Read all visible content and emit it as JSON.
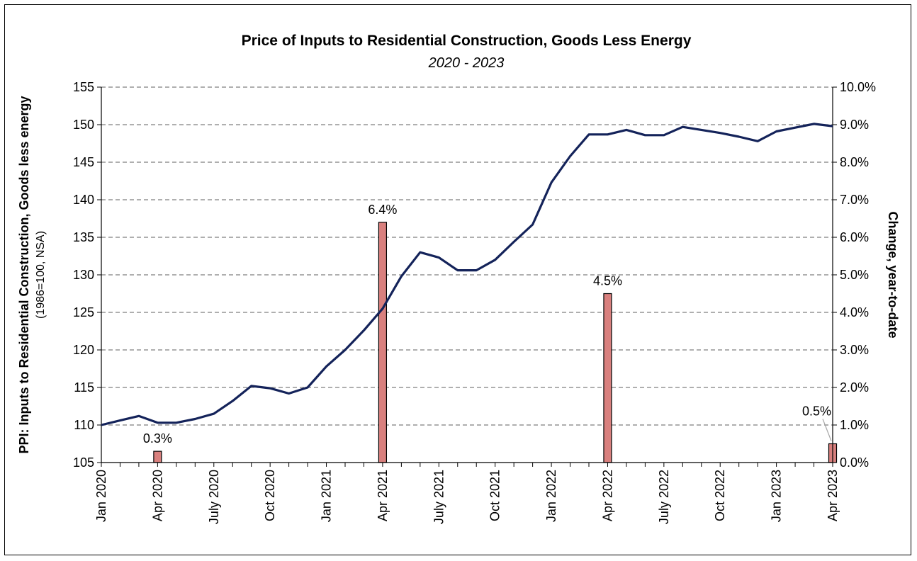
{
  "chart_data": {
    "type": "bar+line",
    "title": "Price of Inputs to Residential Construction, Goods Less Energy",
    "subtitle": "2020 - 2023",
    "y_left": {
      "label": "PPI: Inputs to Residential Construction, Goods less energy",
      "sublabel": "(1986=100, NSA)",
      "range": [
        105,
        155
      ],
      "ticks": [
        "105",
        "110",
        "115",
        "120",
        "125",
        "130",
        "135",
        "140",
        "145",
        "150",
        "155"
      ]
    },
    "y_right": {
      "label": "Change, year-to-date",
      "range": [
        0,
        10
      ],
      "ticks": [
        "0.0%",
        "1.0%",
        "2.0%",
        "3.0%",
        "4.0%",
        "5.0%",
        "6.0%",
        "7.0%",
        "8.0%",
        "9.0%",
        "10.0%"
      ]
    },
    "x_tick_labels": [
      "Jan 2020",
      "Apr 2020",
      "July 2020",
      "Oct 2020",
      "Jan 2021",
      "Apr 2021",
      "July 2021",
      "Oct 2021",
      "Jan 2022",
      "Apr 2022",
      "July 2022",
      "Oct 2022",
      "Jan 2023",
      "Apr 2023"
    ],
    "grid": true,
    "line_series": {
      "color": "#14235a",
      "x": [
        "2020-01",
        "2020-02",
        "2020-03",
        "2020-04",
        "2020-05",
        "2020-06",
        "2020-07",
        "2020-08",
        "2020-09",
        "2020-10",
        "2020-11",
        "2020-12",
        "2021-01",
        "2021-02",
        "2021-03",
        "2021-04",
        "2021-05",
        "2021-06",
        "2021-07",
        "2021-08",
        "2021-09",
        "2021-10",
        "2021-11",
        "2021-12",
        "2022-01",
        "2022-02",
        "2022-03",
        "2022-04",
        "2022-05",
        "2022-06",
        "2022-07",
        "2022-08",
        "2022-09",
        "2022-10",
        "2022-11",
        "2022-12",
        "2023-01",
        "2023-02",
        "2023-03",
        "2023-04"
      ],
      "values": [
        110.0,
        110.6,
        111.2,
        110.3,
        110.3,
        110.8,
        111.5,
        113.2,
        115.2,
        114.9,
        114.2,
        115.0,
        117.8,
        120.0,
        122.6,
        125.5,
        129.8,
        133.0,
        132.3,
        130.6,
        130.6,
        132.0,
        134.4,
        136.7,
        142.3,
        145.8,
        148.7,
        148.7,
        149.3,
        148.6,
        148.6,
        149.7,
        149.3,
        148.9,
        148.4,
        147.8,
        149.1,
        149.6,
        150.1,
        149.8
      ]
    },
    "bar_series": {
      "color": "#d9807e",
      "x": [
        "2020-04",
        "2021-04",
        "2022-04",
        "2023-04"
      ],
      "values": [
        0.3,
        6.4,
        4.5,
        0.5
      ],
      "labels": [
        "0.3%",
        "6.4%",
        "4.5%",
        "0.5%"
      ]
    }
  }
}
